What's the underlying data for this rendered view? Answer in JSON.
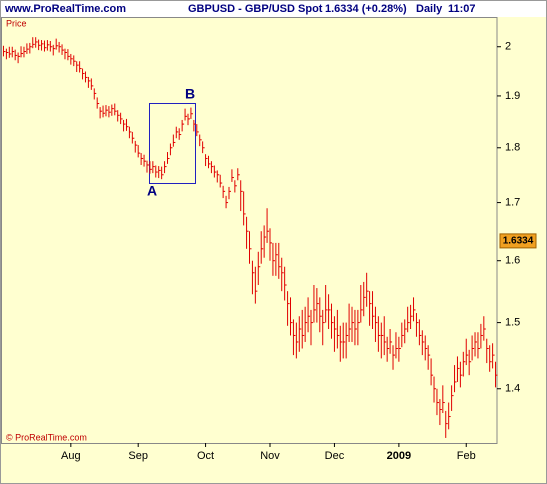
{
  "header": {
    "site": "www.ProRealTime.com",
    "instrument": "GBPUSD - GBP/USD Spot",
    "quote": "1.6334 (+0.28%)",
    "period": "Daily",
    "time": "11:07"
  },
  "chart_data": {
    "type": "ohlc",
    "y_label": "Price",
    "copyright": "© ProRealTime.com",
    "color": "#e00000",
    "log_scale": true,
    "ylim": [
      1.323,
      2.063
    ],
    "yticks": [
      1.4,
      1.5,
      1.6,
      1.7,
      1.8,
      1.9,
      2
    ],
    "last_price": 1.6334,
    "annotations": {
      "start": "A",
      "end": "B"
    },
    "categories": [
      null,
      null,
      null,
      null,
      null,
      null,
      null,
      null,
      null,
      null,
      null,
      null,
      null,
      null,
      null,
      null,
      null,
      null,
      null,
      null,
      null,
      null,
      null,
      "Aug",
      null,
      null,
      null,
      null,
      null,
      null,
      null,
      null,
      null,
      null,
      null,
      null,
      null,
      null,
      null,
      null,
      null,
      null,
      null,
      null,
      null,
      null,
      "Sep",
      null,
      null,
      null,
      null,
      null,
      null,
      null,
      null,
      null,
      null,
      null,
      null,
      null,
      null,
      null,
      null,
      null,
      null,
      null,
      null,
      null,
      null,
      "Oct",
      null,
      null,
      null,
      null,
      null,
      null,
      null,
      null,
      null,
      null,
      null,
      null,
      null,
      null,
      null,
      null,
      null,
      null,
      null,
      null,
      null,
      "Nov",
      null,
      null,
      null,
      null,
      null,
      null,
      null,
      null,
      null,
      null,
      null,
      null,
      null,
      null,
      null,
      null,
      null,
      null,
      null,
      null,
      null,
      "Dec",
      null,
      null,
      null,
      null,
      null,
      null,
      null,
      null,
      null,
      null,
      null,
      null,
      null,
      null,
      null,
      null,
      null,
      null,
      null,
      null,
      null,
      "2009",
      null,
      null,
      null,
      null,
      null,
      null,
      null,
      null,
      null,
      null,
      null,
      null,
      null,
      null,
      null,
      null,
      null,
      null,
      null,
      null,
      null,
      null,
      "Feb",
      null,
      null,
      null,
      null,
      null,
      null,
      null,
      null,
      null,
      null
    ],
    "high": [
      2.002,
      1.996,
      2.0,
      2.0,
      1.994,
      1.988,
      2.001,
      2.0,
      2.007,
      2.008,
      2.02,
      2.02,
      2.015,
      2.014,
      2.013,
      2.014,
      2.012,
      2.004,
      2.017,
      2.01,
      2.005,
      1.996,
      1.995,
      1.985,
      1.982,
      1.97,
      1.97,
      1.955,
      1.949,
      1.938,
      1.935,
      1.915,
      1.897,
      1.878,
      1.881,
      1.882,
      1.88,
      1.883,
      1.885,
      1.872,
      1.867,
      1.853,
      1.855,
      1.84,
      1.83,
      1.813,
      1.805,
      1.79,
      1.787,
      1.776,
      1.775,
      1.775,
      1.767,
      1.766,
      1.765,
      1.775,
      1.792,
      1.808,
      1.825,
      1.84,
      1.837,
      1.853,
      1.875,
      1.865,
      1.877,
      1.853,
      1.845,
      1.825,
      1.812,
      1.788,
      1.785,
      1.775,
      1.767,
      1.758,
      1.75,
      1.73,
      1.712,
      1.728,
      1.76,
      1.74,
      1.762,
      1.74,
      1.72,
      1.675,
      1.65,
      1.6,
      1.59,
      1.615,
      1.65,
      1.66,
      1.69,
      1.655,
      1.63,
      1.63,
      1.63,
      1.605,
      1.59,
      1.55,
      1.54,
      1.505,
      1.5,
      1.51,
      1.52,
      1.525,
      1.54,
      1.52,
      1.56,
      1.555,
      1.54,
      1.52,
      1.56,
      1.545,
      1.53,
      1.51,
      1.52,
      1.495,
      1.5,
      1.5,
      1.53,
      1.525,
      1.52,
      1.52,
      1.56,
      1.565,
      1.58,
      1.55,
      1.55,
      1.525,
      1.51,
      1.5,
      1.51,
      1.478,
      1.49,
      1.465,
      1.485,
      1.478,
      1.5,
      1.505,
      1.525,
      1.528,
      1.54,
      1.515,
      1.505,
      1.488,
      1.48,
      1.465,
      1.445,
      1.418,
      1.4,
      1.385,
      1.405,
      1.368,
      1.38,
      1.405,
      1.435,
      1.448,
      1.44,
      1.455,
      1.475,
      1.458,
      1.48,
      1.485,
      1.485,
      1.498,
      1.51,
      1.475,
      1.465,
      1.468,
      1.44
    ],
    "low": [
      1.98,
      1.974,
      1.977,
      1.978,
      1.972,
      1.966,
      1.978,
      1.978,
      1.985,
      1.986,
      1.997,
      1.998,
      1.993,
      1.992,
      1.99,
      1.992,
      1.99,
      1.982,
      1.994,
      1.988,
      1.983,
      1.974,
      1.972,
      1.963,
      1.96,
      1.948,
      1.947,
      1.933,
      1.927,
      1.916,
      1.912,
      1.893,
      1.875,
      1.856,
      1.858,
      1.86,
      1.858,
      1.861,
      1.862,
      1.85,
      1.845,
      1.831,
      1.832,
      1.818,
      1.808,
      1.791,
      1.782,
      1.768,
      1.765,
      1.754,
      1.752,
      1.753,
      1.745,
      1.744,
      1.742,
      1.753,
      1.77,
      1.786,
      1.802,
      1.818,
      1.815,
      1.831,
      1.852,
      1.843,
      1.855,
      1.831,
      1.822,
      1.803,
      1.79,
      1.766,
      1.762,
      1.753,
      1.745,
      1.736,
      1.727,
      1.708,
      1.69,
      1.706,
      1.737,
      1.718,
      1.74,
      1.685,
      1.66,
      1.62,
      1.595,
      1.545,
      1.53,
      1.56,
      1.595,
      1.605,
      1.63,
      1.6,
      1.575,
      1.575,
      1.57,
      1.55,
      1.535,
      1.495,
      1.48,
      1.45,
      1.445,
      1.455,
      1.46,
      1.47,
      1.485,
      1.465,
      1.5,
      1.5,
      1.485,
      1.465,
      1.5,
      1.49,
      1.475,
      1.455,
      1.46,
      1.44,
      1.445,
      1.445,
      1.47,
      1.47,
      1.465,
      1.465,
      1.5,
      1.51,
      1.525,
      1.495,
      1.49,
      1.47,
      1.455,
      1.445,
      1.45,
      1.44,
      1.452,
      1.428,
      1.445,
      1.44,
      1.462,
      1.468,
      1.485,
      1.49,
      1.502,
      1.478,
      1.465,
      1.45,
      1.442,
      1.428,
      1.405,
      1.38,
      1.362,
      1.348,
      1.365,
      1.33,
      1.342,
      1.368,
      1.395,
      1.41,
      1.402,
      1.418,
      1.435,
      1.42,
      1.442,
      1.448,
      1.445,
      1.46,
      1.472,
      1.438,
      1.425,
      1.43,
      1.402
    ],
    "close": [
      1.99,
      1.988,
      1.985,
      1.99,
      1.982,
      1.98,
      1.986,
      1.99,
      1.995,
      2.0,
      2.005,
      2.01,
      2.003,
      2.006,
      1.998,
      2.004,
      2.0,
      1.996,
      2.002,
      2.0,
      1.993,
      1.988,
      1.98,
      1.975,
      1.97,
      1.962,
      1.955,
      1.945,
      1.937,
      1.93,
      1.92,
      1.905,
      1.885,
      1.87,
      1.866,
      1.872,
      1.868,
      1.875,
      1.87,
      1.862,
      1.855,
      1.845,
      1.84,
      1.83,
      1.818,
      1.805,
      1.79,
      1.78,
      1.775,
      1.768,
      1.76,
      1.765,
      1.755,
      1.758,
      1.75,
      1.765,
      1.78,
      1.8,
      1.81,
      1.83,
      1.825,
      1.845,
      1.86,
      1.855,
      1.865,
      1.845,
      1.83,
      1.815,
      1.8,
      1.78,
      1.77,
      1.765,
      1.755,
      1.75,
      1.735,
      1.72,
      1.7,
      1.72,
      1.745,
      1.73,
      1.75,
      1.72,
      1.68,
      1.65,
      1.62,
      1.58,
      1.55,
      1.59,
      1.62,
      1.64,
      1.65,
      1.63,
      1.6,
      1.61,
      1.59,
      1.58,
      1.56,
      1.53,
      1.5,
      1.48,
      1.47,
      1.49,
      1.48,
      1.5,
      1.51,
      1.5,
      1.52,
      1.53,
      1.51,
      1.5,
      1.52,
      1.52,
      1.5,
      1.49,
      1.48,
      1.47,
      1.47,
      1.48,
      1.49,
      1.5,
      1.49,
      1.5,
      1.52,
      1.54,
      1.55,
      1.53,
      1.51,
      1.5,
      1.48,
      1.48,
      1.47,
      1.46,
      1.47,
      1.45,
      1.46,
      1.46,
      1.48,
      1.49,
      1.5,
      1.51,
      1.52,
      1.5,
      1.48,
      1.47,
      1.46,
      1.45,
      1.42,
      1.4,
      1.38,
      1.37,
      1.38,
      1.35,
      1.36,
      1.39,
      1.41,
      1.43,
      1.42,
      1.44,
      1.45,
      1.44,
      1.46,
      1.47,
      1.46,
      1.48,
      1.49,
      1.46,
      1.44,
      1.45,
      1.42
    ]
  }
}
